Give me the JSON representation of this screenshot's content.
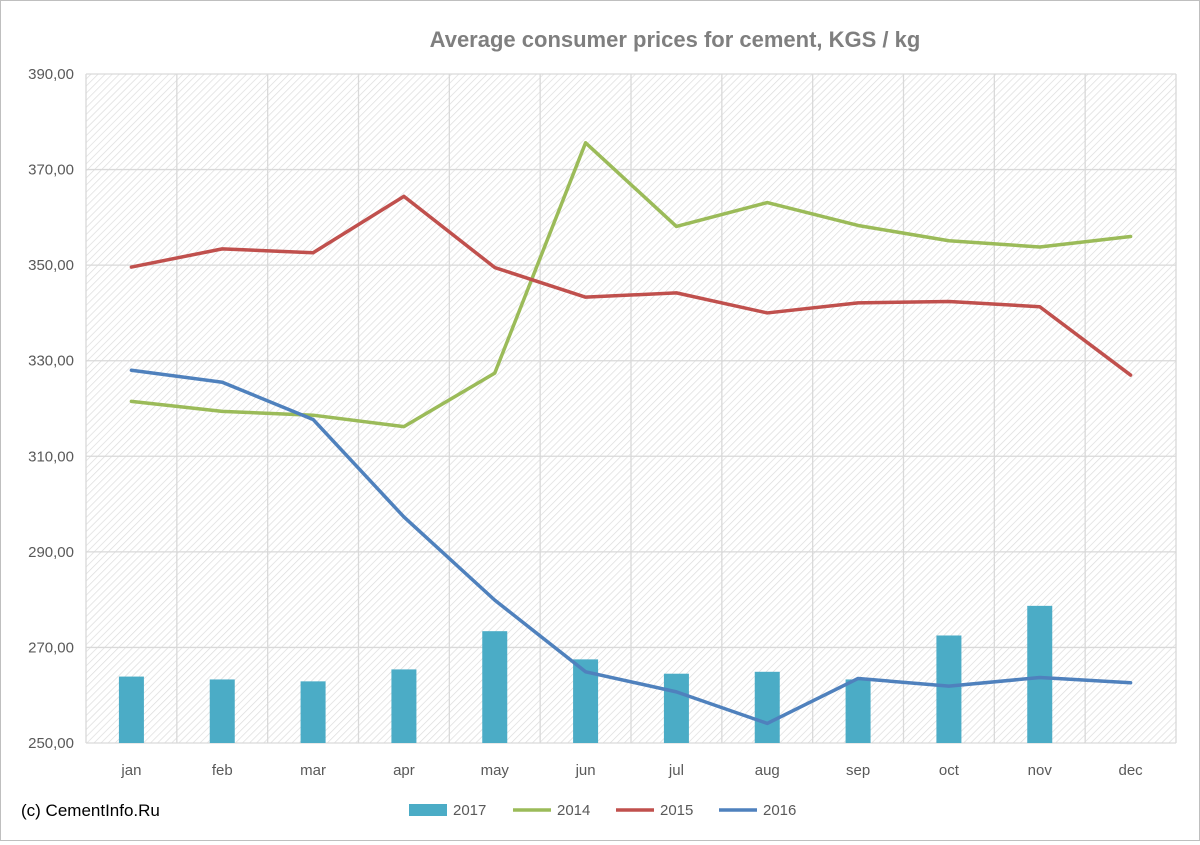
{
  "chart_data": {
    "type": "bar+line",
    "title": "Average consumer prices for cement, KGS / kg",
    "source": "(c) CementInfo.Ru",
    "categories": [
      "jan",
      "feb",
      "mar",
      "apr",
      "may",
      "jun",
      "jul",
      "aug",
      "sep",
      "oct",
      "nov",
      "dec"
    ],
    "ylim": [
      250,
      390
    ],
    "yticks": [
      "250,00",
      "270,00",
      "290,00",
      "310,00",
      "330,00",
      "350,00",
      "370,00",
      "390,00"
    ],
    "grid": true,
    "legend_position": "bottom",
    "series": [
      {
        "name": "2017",
        "kind": "bar",
        "color": "#4bacc6",
        "values": [
          263.9,
          263.3,
          262.9,
          265.4,
          273.4,
          267.5,
          264.5,
          264.9,
          263.3,
          272.5,
          278.7,
          null
        ]
      },
      {
        "name": "2014",
        "kind": "line",
        "color": "#9bbb59",
        "values": [
          321.5,
          319.4,
          318.6,
          316.2,
          327.4,
          375.6,
          358.1,
          363.1,
          358.3,
          355.1,
          353.8,
          356.0
        ]
      },
      {
        "name": "2015",
        "kind": "line",
        "color": "#c0504d",
        "values": [
          349.6,
          353.4,
          352.6,
          364.4,
          349.5,
          343.3,
          344.2,
          340.0,
          342.1,
          342.4,
          341.3,
          327.0
        ]
      },
      {
        "name": "2016",
        "kind": "line",
        "color": "#4f81bd",
        "values": [
          328.0,
          325.5,
          317.7,
          297.3,
          279.9,
          264.9,
          260.7,
          254.1,
          263.5,
          261.9,
          263.7,
          262.6
        ]
      }
    ]
  }
}
